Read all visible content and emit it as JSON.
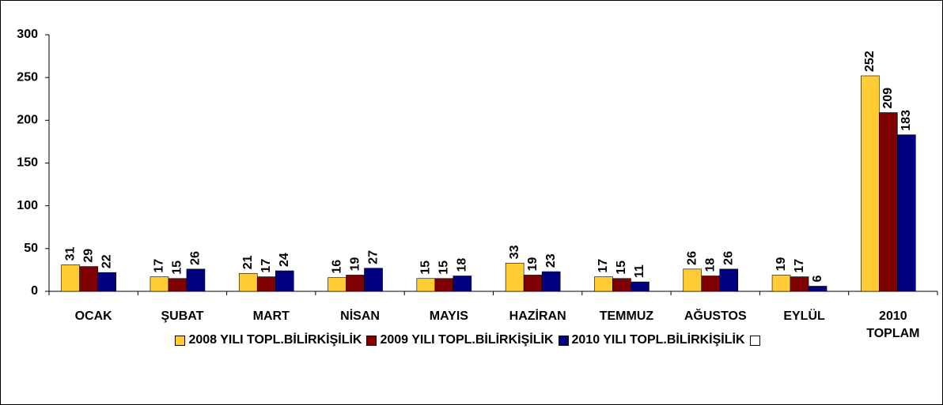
{
  "chart_data": {
    "type": "bar",
    "categories": [
      "OCAK",
      "ŞUBAT",
      "MART",
      "NİSAN",
      "MAYIS",
      "HAZİRAN",
      "TEMMUZ",
      "AĞUSTOS",
      "EYLÜL",
      "2010\nTOPLAM"
    ],
    "series": [
      {
        "name": "2008 YILI TOPL.BİLİRKİŞİLİK",
        "color": "#ffcc33",
        "values": [
          31,
          17,
          21,
          16,
          15,
          33,
          17,
          26,
          19,
          252
        ]
      },
      {
        "name": "2009 YILI TOPL.BİLİRKİŞİLİK",
        "color": "#800000",
        "values": [
          29,
          15,
          17,
          19,
          15,
          19,
          15,
          18,
          17,
          209
        ]
      },
      {
        "name": "2010 YILI TOPL.BİLİRKİŞİLİK",
        "color": "#000080",
        "values": [
          22,
          26,
          24,
          27,
          18,
          23,
          11,
          26,
          6,
          183
        ]
      }
    ],
    "ylim": [
      0,
      300
    ],
    "yticks": [
      0,
      50,
      100,
      150,
      200,
      250,
      300
    ],
    "grid": false,
    "legend": "bottom"
  }
}
